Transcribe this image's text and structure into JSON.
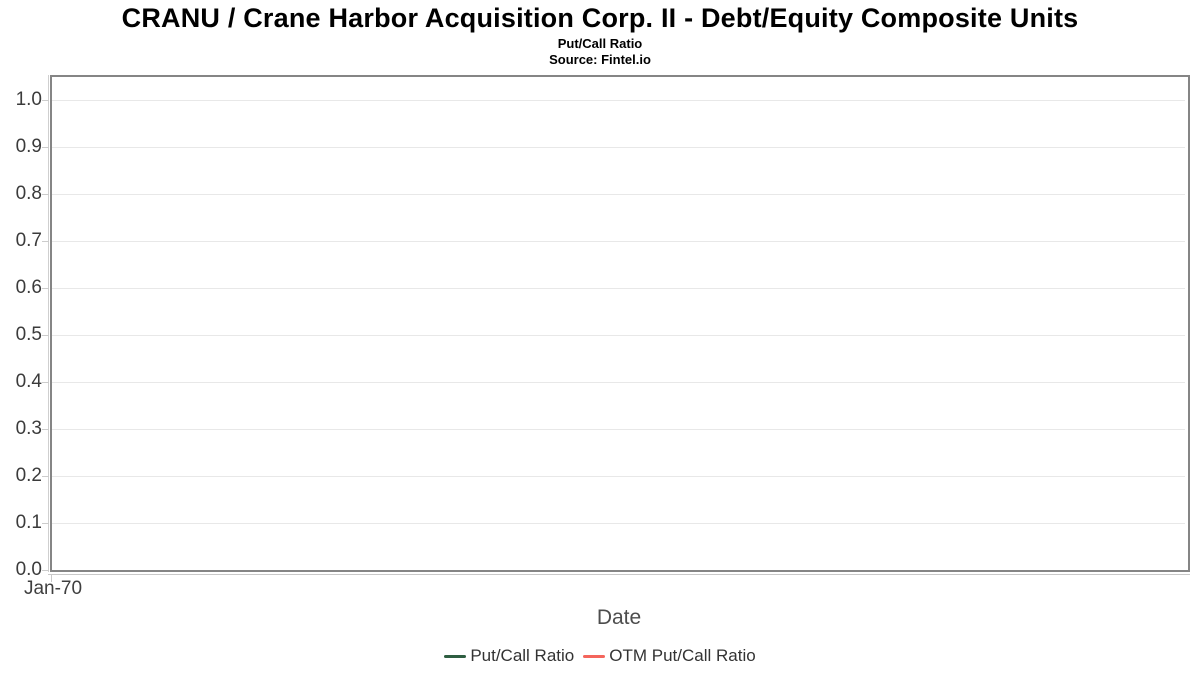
{
  "header": {
    "title": "CRANU / Crane Harbor Acquisition Corp. II - Debt/Equity Composite Units",
    "subtitle": "Put/Call Ratio",
    "source": "Source: Fintel.io"
  },
  "chart_data": {
    "type": "line",
    "title": "CRANU / Crane Harbor Acquisition Corp. II - Debt/Equity Composite Units",
    "subtitle": "Put/Call Ratio",
    "source": "Source: Fintel.io",
    "xlabel": "Date",
    "ylabel": "",
    "x_tick_labels": [
      "Jan-70"
    ],
    "y_ticks": [
      0.0,
      0.1,
      0.2,
      0.3,
      0.4,
      0.5,
      0.6,
      0.7,
      0.8,
      0.9,
      1.0
    ],
    "y_tick_labels": [
      "0.0",
      "0.1",
      "0.2",
      "0.3",
      "0.4",
      "0.5",
      "0.6",
      "0.7",
      "0.8",
      "0.9",
      "1.0"
    ],
    "ylim": [
      0.0,
      1.05
    ],
    "grid": true,
    "legend_position": "bottom-center",
    "plot_background": "#ffffff",
    "series": [
      {
        "name": "Put/Call Ratio",
        "color": "#2e5e41",
        "x": [],
        "values": []
      },
      {
        "name": "OTM Put/Call Ratio",
        "color": "#f4655c",
        "x": [],
        "values": []
      }
    ]
  }
}
